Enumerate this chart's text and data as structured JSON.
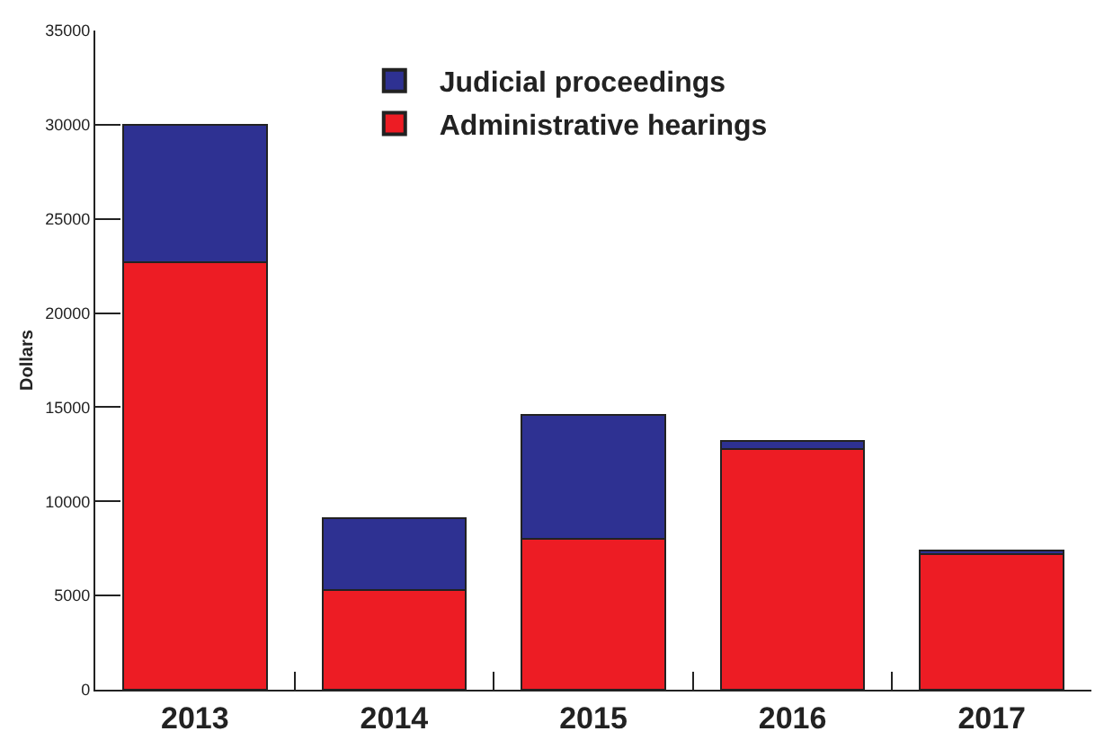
{
  "chart_data": {
    "type": "bar",
    "ylabel": "Dollars",
    "categories": [
      "2013",
      "2014",
      "2015",
      "2016",
      "2017"
    ],
    "series": [
      {
        "name": "Administrative hearings",
        "color": "#ed1c24",
        "values": [
          22700,
          5300,
          8000,
          12800,
          7200
        ]
      },
      {
        "name": "Judicial proceedings",
        "color": "#2e3192",
        "values": [
          7300,
          3800,
          6600,
          400,
          200
        ]
      }
    ],
    "stacked": true,
    "ylim": [
      0,
      35000
    ],
    "yticks": [
      0,
      5000,
      10000,
      15000,
      20000,
      25000,
      30000,
      35000
    ],
    "legend": "top"
  }
}
